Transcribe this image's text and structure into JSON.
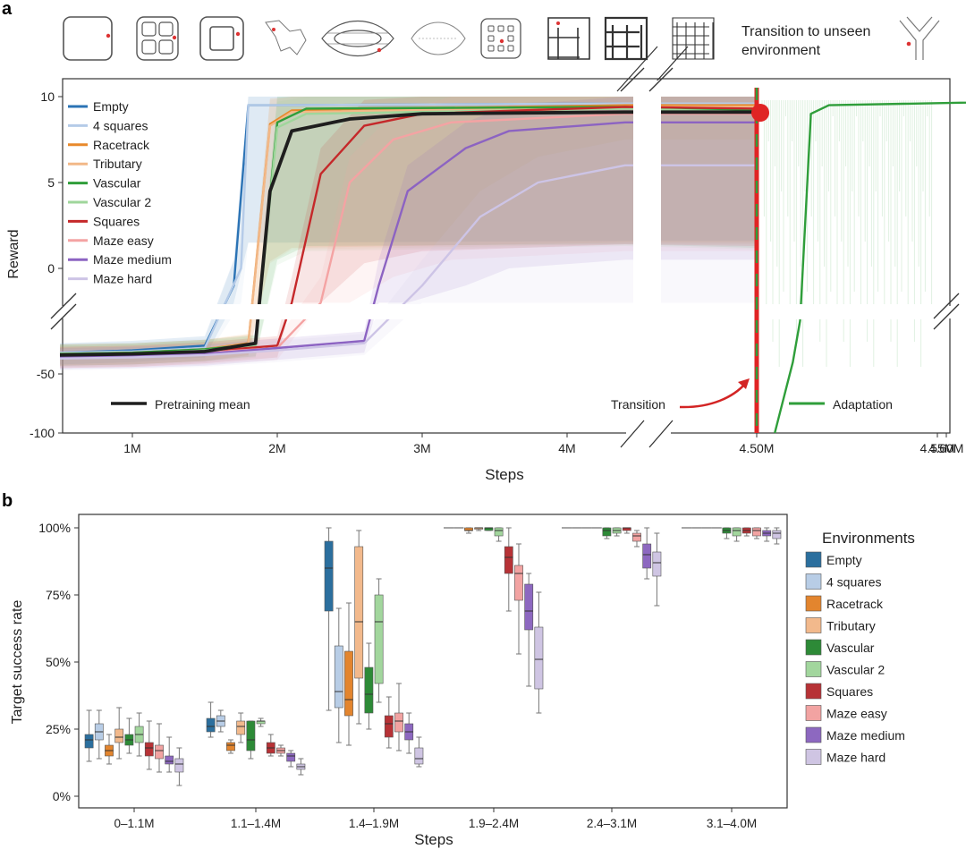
{
  "panel_a": {
    "label": "a",
    "transition_text": [
      "Transition to unseen",
      "environment"
    ],
    "annotations": {
      "pretraining": "Pretraining mean",
      "transition": "Transition",
      "adaptation": "Adaptation"
    },
    "legend_icons": [
      "empty-icon",
      "four-squares-icon",
      "racetrack-icon",
      "tributary-icon",
      "vascular-icon",
      "vascular-2-icon",
      "squares-icon",
      "maze-easy-icon",
      "maze-medium-icon",
      "maze-hard-icon",
      "unseen-environment-icon"
    ]
  },
  "panel_b": {
    "label": "b",
    "legend_title": "Environments"
  },
  "chart_data": [
    {
      "type": "line",
      "title": "",
      "xlabel": "Steps",
      "ylabel": "Reward",
      "x_ticks": [
        "1M",
        "2M",
        "3M",
        "4M",
        "4.50M",
        "4.55M",
        "4.60M"
      ],
      "y_ticks": [
        "10",
        "5",
        "0",
        "-50",
        "-100"
      ],
      "upper_ylim": [
        -2,
        10
      ],
      "lower_ylim": [
        -100,
        -20
      ],
      "legend_position": "top-left",
      "series": [
        {
          "name": "Empty",
          "color": "#2b73b5",
          "points": [
            [
              0.5,
              -32
            ],
            [
              1.0,
              -30
            ],
            [
              1.5,
              -26
            ],
            [
              1.7,
              -1
            ],
            [
              1.8,
              9.5
            ],
            [
              2.0,
              9.5
            ],
            [
              4.4,
              9.6
            ],
            [
              4.5,
              9.6
            ]
          ]
        },
        {
          "name": "4 squares",
          "color": "#b5cbe8",
          "points": [
            [
              0.5,
              -32
            ],
            [
              1.0,
              -31
            ],
            [
              1.5,
              -28
            ],
            [
              1.75,
              0
            ],
            [
              1.8,
              9.5
            ],
            [
              2.0,
              9.5
            ],
            [
              4.4,
              9.6
            ],
            [
              4.5,
              9.6
            ]
          ]
        },
        {
          "name": "Racetrack",
          "color": "#e8892b",
          "points": [
            [
              0.5,
              -33
            ],
            [
              1.0,
              -32
            ],
            [
              1.5,
              -29
            ],
            [
              1.8,
              -24
            ],
            [
              1.95,
              8.4
            ],
            [
              2.1,
              9.2
            ],
            [
              4.4,
              9.5
            ],
            [
              4.5,
              9.5
            ]
          ]
        },
        {
          "name": "Tributary",
          "color": "#f2b888",
          "points": [
            [
              0.5,
              -33
            ],
            [
              1.0,
              -32
            ],
            [
              1.5,
              -29
            ],
            [
              1.8,
              -25
            ],
            [
              1.95,
              8.3
            ],
            [
              2.1,
              9.1
            ],
            [
              4.4,
              9.4
            ],
            [
              4.5,
              9.4
            ]
          ]
        },
        {
          "name": "Vascular",
          "color": "#2f9e3a",
          "points": [
            [
              0.5,
              -33
            ],
            [
              1.0,
              -32
            ],
            [
              1.5,
              -29
            ],
            [
              1.85,
              -25
            ],
            [
              2.0,
              8.5
            ],
            [
              2.2,
              9.3
            ],
            [
              4.4,
              9.4
            ],
            [
              4.5,
              9.2
            ]
          ]
        },
        {
          "name": "Vascular 2",
          "color": "#9fd69b",
          "points": [
            [
              0.5,
              -34
            ],
            [
              1.0,
              -33
            ],
            [
              1.5,
              -30
            ],
            [
              1.85,
              -26
            ],
            [
              2.0,
              8.2
            ],
            [
              2.2,
              9.0
            ],
            [
              4.4,
              9.3
            ],
            [
              4.5,
              9.1
            ]
          ]
        },
        {
          "name": "Squares",
          "color": "#c5282a",
          "points": [
            [
              0.5,
              -35
            ],
            [
              1.0,
              -34
            ],
            [
              1.5,
              -31
            ],
            [
              2.0,
              -26
            ],
            [
              2.1,
              -2
            ],
            [
              2.3,
              5.5
            ],
            [
              2.6,
              8.3
            ],
            [
              3.0,
              9.0
            ],
            [
              4.4,
              9.4
            ],
            [
              4.5,
              9.3
            ]
          ]
        },
        {
          "name": "Maze easy",
          "color": "#f4a3a3",
          "points": [
            [
              0.5,
              -35
            ],
            [
              1.0,
              -34
            ],
            [
              1.5,
              -32
            ],
            [
              2.0,
              -28
            ],
            [
              2.3,
              -2
            ],
            [
              2.5,
              5.0
            ],
            [
              2.8,
              7.5
            ],
            [
              3.2,
              8.5
            ],
            [
              4.4,
              9.0
            ],
            [
              4.5,
              9.0
            ]
          ]
        },
        {
          "name": "Maze medium",
          "color": "#8c63c2",
          "points": [
            [
              0.5,
              -36
            ],
            [
              1.0,
              -35
            ],
            [
              1.5,
              -33
            ],
            [
              2.0,
              -28
            ],
            [
              2.6,
              -22
            ],
            [
              2.7,
              -1
            ],
            [
              2.9,
              4.5
            ],
            [
              3.3,
              7.0
            ],
            [
              3.6,
              8.0
            ],
            [
              4.4,
              8.5
            ],
            [
              4.5,
              8.5
            ]
          ]
        },
        {
          "name": "Maze hard",
          "color": "#cdc4e6",
          "points": [
            [
              0.5,
              -37
            ],
            [
              1.0,
              -36
            ],
            [
              1.5,
              -34
            ],
            [
              2.0,
              -30
            ],
            [
              2.6,
              -24
            ],
            [
              3.0,
              -1
            ],
            [
              3.4,
              3.0
            ],
            [
              3.8,
              5.0
            ],
            [
              4.4,
              6.0
            ],
            [
              4.5,
              6.0
            ]
          ]
        },
        {
          "name": "Pretraining mean",
          "color": "#1e1e1e",
          "points": [
            [
              0.5,
              -34
            ],
            [
              1.0,
              -33
            ],
            [
              1.5,
              -31
            ],
            [
              1.85,
              -24
            ],
            [
              1.95,
              4.5
            ],
            [
              2.1,
              8.0
            ],
            [
              2.5,
              8.7
            ],
            [
              3.0,
              9.0
            ],
            [
              4.4,
              9.1
            ],
            [
              4.5,
              9.1
            ]
          ]
        },
        {
          "name": "Adaptation",
          "color": "#2f9e3a",
          "points": [
            [
              4.505,
              -100
            ],
            [
              4.51,
              -40
            ],
            [
              4.512,
              -5
            ],
            [
              4.515,
              9.0
            ],
            [
              4.52,
              9.5
            ],
            [
              4.595,
              9.8
            ]
          ]
        }
      ]
    },
    {
      "type": "box",
      "title": "",
      "xlabel": "Steps",
      "ylabel": "Target success rate",
      "y_ticks": [
        "0%",
        "25%",
        "50%",
        "75%",
        "100%"
      ],
      "ylim": [
        0,
        100
      ],
      "categories": [
        "0–1.1M",
        "1.1–1.4M",
        "1.4–1.9M",
        "1.9–2.4M",
        "2.4–3.1M",
        "3.1–4.0M"
      ],
      "legend_position": "right",
      "series": [
        {
          "name": "Empty",
          "color": "#2b6f9e",
          "boxes": [
            [
              13,
              18,
              21,
              23,
              32
            ],
            [
              22,
              24,
              26,
              29,
              35
            ],
            [
              32,
              69,
              85,
              95,
              100
            ],
            [
              100,
              100,
              100,
              100,
              100
            ],
            [
              100,
              100,
              100,
              100,
              100
            ],
            [
              100,
              100,
              100,
              100,
              100
            ]
          ]
        },
        {
          "name": "4 squares",
          "color": "#b8cde6",
          "boxes": [
            [
              14,
              21,
              24,
              27,
              32
            ],
            [
              24,
              26,
              28,
              30,
              32
            ],
            [
              20,
              33,
              39,
              56,
              70
            ],
            [
              100,
              100,
              100,
              100,
              100
            ],
            [
              100,
              100,
              100,
              100,
              100
            ],
            [
              100,
              100,
              100,
              100,
              100
            ]
          ]
        },
        {
          "name": "Racetrack",
          "color": "#e3852e",
          "boxes": [
            [
              12,
              15,
              17,
              19,
              23
            ],
            [
              16,
              17,
              19,
              20,
              21
            ],
            [
              19,
              30,
              36,
              54,
              72
            ],
            [
              98,
              99,
              99,
              100,
              100
            ],
            [
              100,
              100,
              100,
              100,
              100
            ],
            [
              100,
              100,
              100,
              100,
              100
            ]
          ]
        },
        {
          "name": "Tributary",
          "color": "#f2b98c",
          "boxes": [
            [
              14,
              20,
              22,
              25,
              33
            ],
            [
              20,
              23,
              26,
              28,
              31
            ],
            [
              27,
              44,
              65,
              93,
              99
            ],
            [
              99,
              100,
              100,
              100,
              100
            ],
            [
              100,
              100,
              100,
              100,
              100
            ],
            [
              100,
              100,
              100,
              100,
              100
            ]
          ]
        },
        {
          "name": "Vascular",
          "color": "#2d8a37",
          "boxes": [
            [
              16,
              19,
              21,
              23,
              29
            ],
            [
              14,
              17,
              21,
              28,
              28
            ],
            [
              25,
              31,
              38,
              48,
              57
            ],
            [
              99,
              99,
              100,
              100,
              100
            ],
            [
              96,
              97,
              99,
              100,
              100
            ],
            [
              96,
              98,
              99,
              100,
              100
            ]
          ]
        },
        {
          "name": "Vascular 2",
          "color": "#a2d69d",
          "boxes": [
            [
              15,
              20,
              23,
              26,
              31
            ],
            [
              26,
              27,
              28,
              28,
              29
            ],
            [
              35,
              42,
              65,
              75,
              81
            ],
            [
              95,
              97,
              99,
              100,
              100
            ],
            [
              97,
              98,
              99,
              100,
              100
            ],
            [
              95,
              97,
              99,
              100,
              100
            ]
          ]
        },
        {
          "name": "Squares",
          "color": "#b73236",
          "boxes": [
            [
              10,
              15,
              18,
              20,
              28
            ],
            [
              15,
              16,
              18,
              20,
              23
            ],
            [
              18,
              22,
              27,
              30,
              37
            ],
            [
              69,
              83,
              89,
              93,
              100
            ],
            [
              98,
              99,
              100,
              100,
              100
            ],
            [
              97,
              98,
              99,
              100,
              100
            ]
          ]
        },
        {
          "name": "Maze easy",
          "color": "#f2a3a2",
          "boxes": [
            [
              9,
              14,
              17,
              19,
              27
            ],
            [
              15,
              16,
              17,
              18,
              19
            ],
            [
              17,
              24,
              28,
              31,
              42
            ],
            [
              53,
              73,
              83,
              86,
              94
            ],
            [
              93,
              95,
              97,
              98,
              99
            ],
            [
              96,
              97,
              99,
              100,
              100
            ]
          ]
        },
        {
          "name": "Maze medium",
          "color": "#8d68c0",
          "boxes": [
            [
              9,
              12,
              13,
              15,
              22
            ],
            [
              11,
              13,
              15,
              16,
              17
            ],
            [
              16,
              21,
              24,
              27,
              31
            ],
            [
              41,
              62,
              69,
              79,
              83
            ],
            [
              81,
              85,
              90,
              94,
              100
            ],
            [
              95,
              97,
              98,
              99,
              100
            ]
          ]
        },
        {
          "name": "Maze hard",
          "color": "#cfc5e3",
          "boxes": [
            [
              4,
              9,
              12,
              14,
              18
            ],
            [
              8,
              10,
              11,
              12,
              14
            ],
            [
              11,
              12,
              14,
              18,
              22
            ],
            [
              31,
              40,
              51,
              63,
              76
            ],
            [
              71,
              82,
              87,
              91,
              98
            ],
            [
              94,
              96,
              98,
              99,
              100
            ]
          ]
        }
      ]
    }
  ]
}
